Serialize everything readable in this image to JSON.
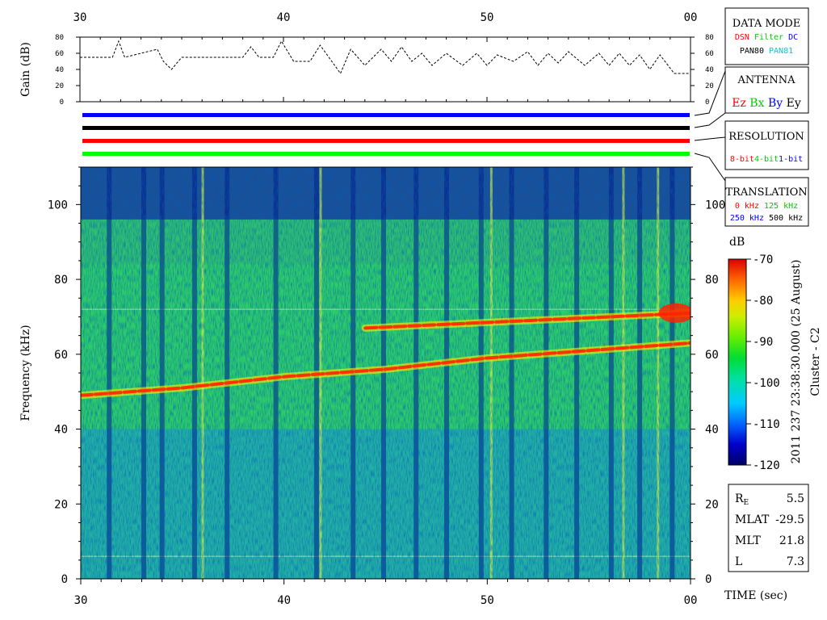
{
  "chart_data": [
    {
      "type": "line",
      "ylabel": "Gain (dB)",
      "ylim": [
        0,
        80
      ],
      "y_ticks": [
        "0",
        "20",
        "40",
        "60",
        "80"
      ],
      "x_ticks": [
        "30",
        "40",
        "50",
        "00"
      ],
      "xlim": [
        30,
        60
      ],
      "x": [
        30,
        31.6,
        31.9,
        32.2,
        33.8,
        34.1,
        34.5,
        35.0,
        38.0,
        38.4,
        38.8,
        39.5,
        39.9,
        40.5,
        41.3,
        41.8,
        42.8,
        43.3,
        44.0,
        44.8,
        45.3,
        45.8,
        46.3,
        46.8,
        47.3,
        48.0,
        48.8,
        49.5,
        50.0,
        50.5,
        51.3,
        52.0,
        52.5,
        53.0,
        53.5,
        54.0,
        54.8,
        55.5,
        56.0,
        56.5,
        57.0,
        57.5,
        58.0,
        58.5,
        59.2,
        60.0
      ],
      "y": [
        55,
        55,
        75,
        55,
        65,
        50,
        40,
        55,
        55,
        68,
        55,
        55,
        75,
        50,
        50,
        70,
        35,
        65,
        45,
        65,
        50,
        68,
        50,
        60,
        45,
        60,
        45,
        60,
        45,
        58,
        50,
        62,
        45,
        60,
        48,
        62,
        45,
        60,
        45,
        60,
        45,
        58,
        40,
        58,
        35,
        35
      ]
    },
    {
      "type": "heatmap",
      "xlabel": "TIME (sec)",
      "ylabel": "Frequency (kHz)",
      "xlim": [
        30,
        60
      ],
      "ylim": [
        0,
        110
      ],
      "x_ticks": [
        "30",
        "40",
        "50",
        "00"
      ],
      "y_ticks": [
        "0",
        "20",
        "40",
        "60",
        "80",
        "100"
      ],
      "colorbar": {
        "label": "dB",
        "range": [
          -120,
          -70
        ],
        "ticks": [
          "-70",
          "-80",
          "-90",
          "-100",
          "-110",
          "-120"
        ]
      },
      "emission_lines": [
        {
          "x": [
            30,
            35,
            40,
            45,
            50,
            55,
            60
          ],
          "y": [
            49,
            51,
            54,
            56,
            59,
            61,
            63
          ]
        },
        {
          "x": [
            44,
            48,
            52,
            56,
            60
          ],
          "y": [
            67,
            68,
            69,
            70,
            71
          ]
        }
      ]
    }
  ],
  "side_panel": {
    "data_mode": {
      "title": "DATA MODE",
      "row1": [
        {
          "text": "DSN",
          "color": "#ff0000"
        },
        {
          "text": "Filter",
          "color": "#00cc00"
        },
        {
          "text": "DC",
          "color": "#0000ff"
        }
      ],
      "row2": [
        {
          "text": "PAN80",
          "color": "#000000"
        },
        {
          "text": "PAN81",
          "color": "#00cccc"
        }
      ]
    },
    "antenna": {
      "title": "ANTENNA",
      "items": [
        {
          "text": "Ez",
          "color": "#ff0000"
        },
        {
          "text": "Bx",
          "color": "#00cc00"
        },
        {
          "text": "By",
          "color": "#0000ff"
        },
        {
          "text": "Ey",
          "color": "#000000"
        }
      ]
    },
    "resolution": {
      "title": "RESOLUTION",
      "items": [
        {
          "text": "8-bit",
          "color": "#ff0000"
        },
        {
          "text": "4-bit",
          "color": "#00cc00"
        },
        {
          "text": "1-bit",
          "color": "#0000ff"
        }
      ]
    },
    "translation": {
      "title": "TRANSLATION",
      "row1": [
        {
          "text": "0 kHz",
          "color": "#ff0000"
        },
        {
          "text": "125 kHz",
          "color": "#00cc00"
        }
      ],
      "row2": [
        {
          "text": "250 kHz",
          "color": "#0000ff"
        },
        {
          "text": "500 kHz",
          "color": "#000000"
        }
      ]
    },
    "vertical_caption": "2011 237 23:38:30.000 (25 August)",
    "spacecraft": "Cluster - C2",
    "orbit_info": {
      "re_main": "R",
      "re_sub": "E",
      "re_value": "5.5",
      "mlat_label": "MLAT",
      "mlat_value": "-29.5",
      "mlt_label": "MLT",
      "mlt_value": "21.8",
      "l_label": "L",
      "l_value": "7.3"
    }
  },
  "status_bars": [
    {
      "color": "#0000ff"
    },
    {
      "color": "#000000"
    },
    {
      "color": "#ff0000"
    },
    {
      "color": "#00ff00"
    }
  ]
}
